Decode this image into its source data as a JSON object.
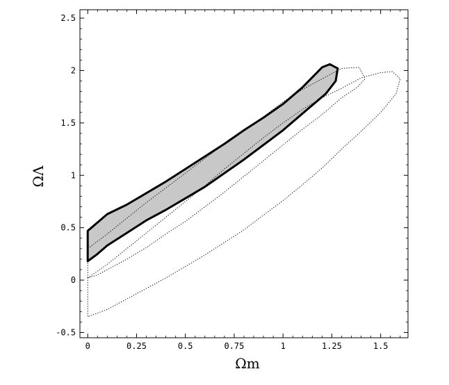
{
  "chart_data": {
    "type": "contour",
    "xlabel": "Ωm",
    "ylabel": "ΩΛ",
    "xlim": [
      -0.04,
      1.64
    ],
    "ylim": [
      -0.55,
      2.58
    ],
    "xticks": [
      0,
      0.25,
      0.5,
      0.75,
      1,
      1.25,
      1.5
    ],
    "xtick_labels": [
      "0",
      "0.25",
      "0.5",
      "0.75",
      "1",
      "1.25",
      "1.5"
    ],
    "yticks": [
      -0.5,
      0,
      0.5,
      1,
      1.5,
      2,
      2.5
    ],
    "ytick_labels": [
      "-0.5",
      "0",
      "0.5",
      "1",
      "1.5",
      "2",
      "2.5"
    ],
    "grid": false,
    "colors": {
      "filled_region": "#c8c8c8",
      "outline": "#000000"
    },
    "contours": [
      {
        "style": "filled-solid",
        "points": [
          [
            0,
            0.47
          ],
          [
            0.05,
            0.55
          ],
          [
            0.1,
            0.63
          ],
          [
            0.2,
            0.72
          ],
          [
            0.3,
            0.83
          ],
          [
            0.4,
            0.94
          ],
          [
            0.5,
            1.06
          ],
          [
            0.6,
            1.18
          ],
          [
            0.7,
            1.3
          ],
          [
            0.8,
            1.43
          ],
          [
            0.9,
            1.55
          ],
          [
            1.0,
            1.68
          ],
          [
            1.1,
            1.84
          ],
          [
            1.2,
            2.03
          ],
          [
            1.24,
            2.06
          ],
          [
            1.28,
            2.02
          ],
          [
            1.27,
            1.9
          ],
          [
            1.22,
            1.78
          ],
          [
            1.1,
            1.59
          ],
          [
            1.0,
            1.43
          ],
          [
            0.9,
            1.29
          ],
          [
            0.8,
            1.15
          ],
          [
            0.7,
            1.02
          ],
          [
            0.6,
            0.89
          ],
          [
            0.5,
            0.78
          ],
          [
            0.4,
            0.67
          ],
          [
            0.3,
            0.57
          ],
          [
            0.2,
            0.45
          ],
          [
            0.1,
            0.33
          ],
          [
            0.05,
            0.25
          ],
          [
            0,
            0.18
          ]
        ]
      },
      {
        "style": "dotted",
        "points": [
          [
            0,
            0.3
          ],
          [
            0.1,
            0.44
          ],
          [
            0.2,
            0.59
          ],
          [
            0.3,
            0.74
          ],
          [
            0.4,
            0.88
          ],
          [
            0.5,
            1.02
          ],
          [
            0.6,
            1.16
          ],
          [
            0.7,
            1.3
          ],
          [
            0.8,
            1.43
          ],
          [
            0.9,
            1.56
          ],
          [
            1.0,
            1.7
          ],
          [
            1.1,
            1.82
          ],
          [
            1.2,
            1.92
          ],
          [
            1.3,
            2.02
          ],
          [
            1.39,
            2.03
          ],
          [
            1.42,
            1.92
          ],
          [
            1.38,
            1.84
          ],
          [
            1.3,
            1.74
          ],
          [
            1.2,
            1.58
          ],
          [
            1.1,
            1.44
          ],
          [
            1.0,
            1.29
          ],
          [
            0.9,
            1.14
          ],
          [
            0.8,
            0.99
          ],
          [
            0.7,
            0.84
          ],
          [
            0.6,
            0.7
          ],
          [
            0.5,
            0.56
          ],
          [
            0.4,
            0.44
          ],
          [
            0.3,
            0.31
          ],
          [
            0.2,
            0.2
          ],
          [
            0.1,
            0.1
          ],
          [
            0.05,
            0.05
          ],
          [
            0,
            0.02
          ]
        ]
      },
      {
        "style": "dotted",
        "points": [
          [
            0,
            0.02
          ],
          [
            0.1,
            0.15
          ],
          [
            0.2,
            0.3
          ],
          [
            0.3,
            0.45
          ],
          [
            0.4,
            0.6
          ],
          [
            0.5,
            0.75
          ],
          [
            0.6,
            0.9
          ],
          [
            0.7,
            1.06
          ],
          [
            0.8,
            1.21
          ],
          [
            0.9,
            1.36
          ],
          [
            1.0,
            1.5
          ],
          [
            1.1,
            1.63
          ],
          [
            1.2,
            1.74
          ],
          [
            1.3,
            1.83
          ],
          [
            1.4,
            1.93
          ],
          [
            1.5,
            1.98
          ],
          [
            1.56,
            1.99
          ],
          [
            1.6,
            1.92
          ],
          [
            1.58,
            1.78
          ],
          [
            1.5,
            1.6
          ],
          [
            1.4,
            1.42
          ],
          [
            1.3,
            1.25
          ],
          [
            1.2,
            1.07
          ],
          [
            1.1,
            0.91
          ],
          [
            1.0,
            0.76
          ],
          [
            0.9,
            0.62
          ],
          [
            0.8,
            0.48
          ],
          [
            0.7,
            0.36
          ],
          [
            0.6,
            0.24
          ],
          [
            0.5,
            0.13
          ],
          [
            0.4,
            0.02
          ],
          [
            0.3,
            -0.08
          ],
          [
            0.2,
            -0.18
          ],
          [
            0.1,
            -0.28
          ],
          [
            0,
            -0.35
          ]
        ]
      }
    ]
  }
}
